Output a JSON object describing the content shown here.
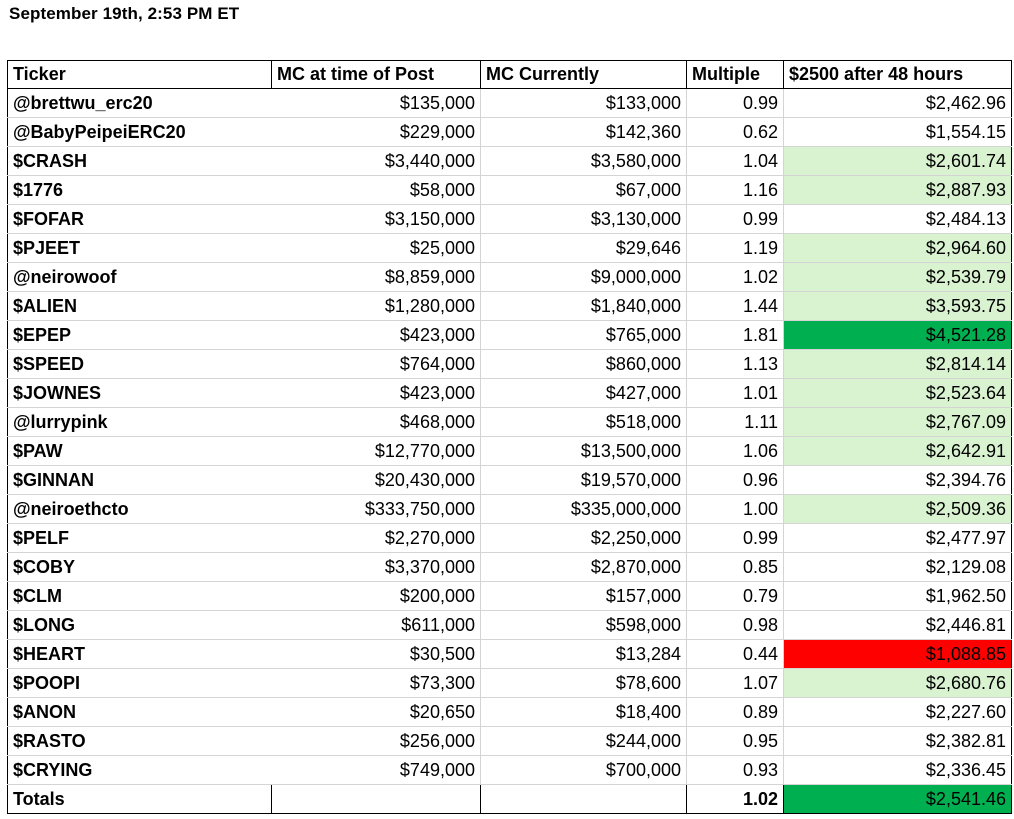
{
  "title": "September 19th, 2:53 PM ET",
  "headers": [
    "Ticker",
    "MC at time of Post",
    "MC Currently",
    "Multiple",
    "$2500 after 48 hours"
  ],
  "colors": {
    "light_green": "#d9f2d0",
    "strong_green": "#00b050",
    "red": "#ff0000"
  },
  "rows": [
    {
      "ticker": "@brettwu_erc20",
      "mc_post": "$135,000",
      "mc_now": "$133,000",
      "multiple": "0.99",
      "value": "$2,462.96",
      "highlight": "none"
    },
    {
      "ticker": "@BabyPeipeiERC20",
      "mc_post": "$229,000",
      "mc_now": "$142,360",
      "multiple": "0.62",
      "value": "$1,554.15",
      "highlight": "none"
    },
    {
      "ticker": "$CRASH",
      "mc_post": "$3,440,000",
      "mc_now": "$3,580,000",
      "multiple": "1.04",
      "value": "$2,601.74",
      "highlight": "light"
    },
    {
      "ticker": "$1776",
      "mc_post": "$58,000",
      "mc_now": "$67,000",
      "multiple": "1.16",
      "value": "$2,887.93",
      "highlight": "light"
    },
    {
      "ticker": "$FOFAR",
      "mc_post": "$3,150,000",
      "mc_now": "$3,130,000",
      "multiple": "0.99",
      "value": "$2,484.13",
      "highlight": "none"
    },
    {
      "ticker": "$PJEET",
      "mc_post": "$25,000",
      "mc_now": "$29,646",
      "multiple": "1.19",
      "value": "$2,964.60",
      "highlight": "light"
    },
    {
      "ticker": "@neirowoof",
      "mc_post": "$8,859,000",
      "mc_now": "$9,000,000",
      "multiple": "1.02",
      "value": "$2,539.79",
      "highlight": "light"
    },
    {
      "ticker": "$ALIEN",
      "mc_post": "$1,280,000",
      "mc_now": "$1,840,000",
      "multiple": "1.44",
      "value": "$3,593.75",
      "highlight": "light"
    },
    {
      "ticker": "$EPEP",
      "mc_post": "$423,000",
      "mc_now": "$765,000",
      "multiple": "1.81",
      "value": "$4,521.28",
      "highlight": "strong"
    },
    {
      "ticker": "$SPEED",
      "mc_post": "$764,000",
      "mc_now": "$860,000",
      "multiple": "1.13",
      "value": "$2,814.14",
      "highlight": "light"
    },
    {
      "ticker": "$JOWNES",
      "mc_post": "$423,000",
      "mc_now": "$427,000",
      "multiple": "1.01",
      "value": "$2,523.64",
      "highlight": "light"
    },
    {
      "ticker": "@lurrypink",
      "mc_post": "$468,000",
      "mc_now": "$518,000",
      "multiple": "1.11",
      "value": "$2,767.09",
      "highlight": "light"
    },
    {
      "ticker": "$PAW",
      "mc_post": "$12,770,000",
      "mc_now": "$13,500,000",
      "multiple": "1.06",
      "value": "$2,642.91",
      "highlight": "light"
    },
    {
      "ticker": "$GINNAN",
      "mc_post": "$20,430,000",
      "mc_now": "$19,570,000",
      "multiple": "0.96",
      "value": "$2,394.76",
      "highlight": "none"
    },
    {
      "ticker": "@neiroethcto",
      "mc_post": "$333,750,000",
      "mc_now": "$335,000,000",
      "multiple": "1.00",
      "value": "$2,509.36",
      "highlight": "light"
    },
    {
      "ticker": "$PELF",
      "mc_post": "$2,270,000",
      "mc_now": "$2,250,000",
      "multiple": "0.99",
      "value": "$2,477.97",
      "highlight": "none"
    },
    {
      "ticker": "$COBY",
      "mc_post": "$3,370,000",
      "mc_now": "$2,870,000",
      "multiple": "0.85",
      "value": "$2,129.08",
      "highlight": "none"
    },
    {
      "ticker": "$CLM",
      "mc_post": "$200,000",
      "mc_now": "$157,000",
      "multiple": "0.79",
      "value": "$1,962.50",
      "highlight": "none"
    },
    {
      "ticker": "$LONG",
      "mc_post": "$611,000",
      "mc_now": "$598,000",
      "multiple": "0.98",
      "value": "$2,446.81",
      "highlight": "none"
    },
    {
      "ticker": "$HEART",
      "mc_post": "$30,500",
      "mc_now": "$13,284",
      "multiple": "0.44",
      "value": "$1,088.85",
      "highlight": "red"
    },
    {
      "ticker": "$POOPI",
      "mc_post": "$73,300",
      "mc_now": "$78,600",
      "multiple": "1.07",
      "value": "$2,680.76",
      "highlight": "light"
    },
    {
      "ticker": "$ANON",
      "mc_post": "$20,650",
      "mc_now": "$18,400",
      "multiple": "0.89",
      "value": "$2,227.60",
      "highlight": "none"
    },
    {
      "ticker": "$RASTO",
      "mc_post": "$256,000",
      "mc_now": "$244,000",
      "multiple": "0.95",
      "value": "$2,382.81",
      "highlight": "none"
    },
    {
      "ticker": "$CRYING",
      "mc_post": "$749,000",
      "mc_now": "$700,000",
      "multiple": "0.93",
      "value": "$2,336.45",
      "highlight": "none"
    }
  ],
  "totals": {
    "label": "Totals",
    "multiple": "1.02",
    "value": "$2,541.46",
    "highlight": "strong"
  }
}
